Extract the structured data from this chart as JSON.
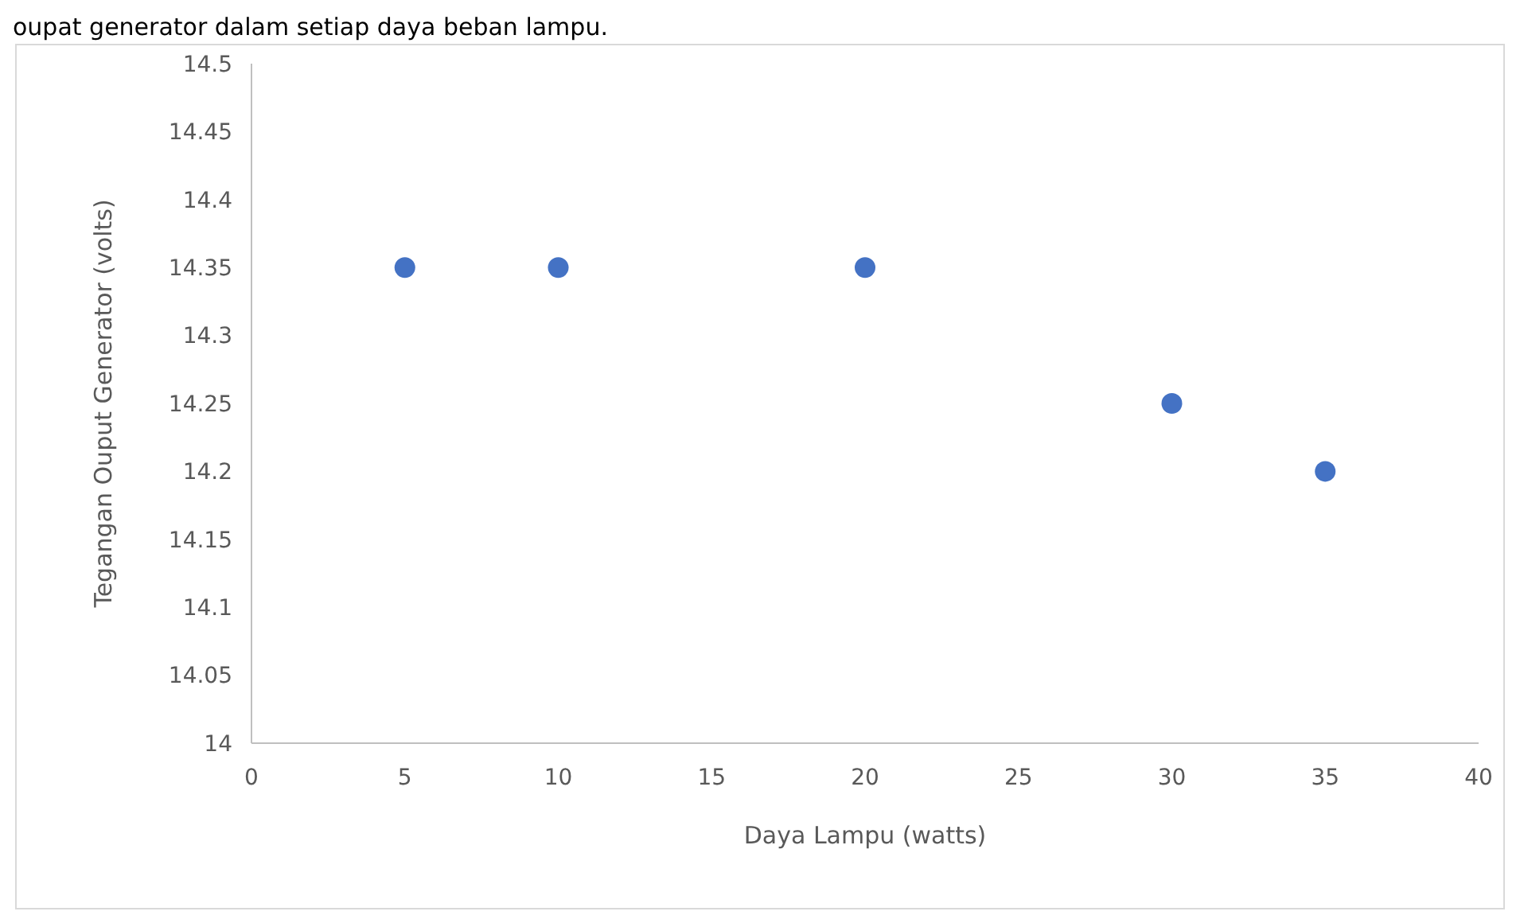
{
  "chart_data": {
    "type": "scatter",
    "xlabel": "Daya Lampu (watts)",
    "ylabel": "Tegangan Ouput Generator (volts)",
    "annotations": [
      "oupat generator dalam setiap daya beban lampu."
    ],
    "x": [
      5,
      10,
      20,
      30,
      35
    ],
    "series": [
      {
        "color": "#4472c4",
        "values": [
          14.35,
          14.35,
          14.35,
          14.25,
          14.2
        ]
      }
    ],
    "xlim": [
      0,
      40
    ],
    "xticks": [
      0,
      5,
      10,
      15,
      20,
      25,
      30,
      35,
      40
    ],
    "ylim": [
      14,
      14.5
    ],
    "yticks": [
      14,
      14.05,
      14.1,
      14.15,
      14.2,
      14.25,
      14.3,
      14.35,
      14.4,
      14.45,
      14.5
    ],
    "grid": false,
    "marker": "circle"
  }
}
